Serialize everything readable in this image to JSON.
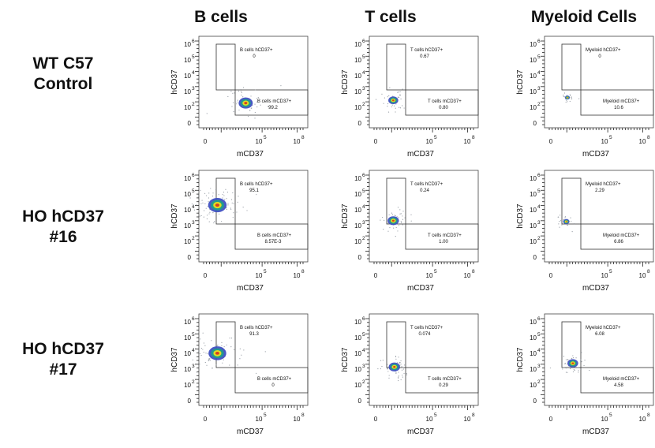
{
  "column_headers": [
    "B cells",
    "T cells",
    "Myeloid Cells"
  ],
  "row_headers": [
    [
      "WT C57",
      "Control"
    ],
    [
      "HO hCD37",
      "#16"
    ],
    [
      "HO hCD37",
      "#17"
    ]
  ],
  "axis": {
    "xlabel": "mCD37",
    "ylabel": "hCD37",
    "x_ticks": [
      {
        "base": "0",
        "exp": ""
      },
      {
        "base": "10",
        "exp": "5"
      },
      {
        "base": "10",
        "exp": "8"
      }
    ],
    "y_ticks": [
      {
        "base": "10",
        "exp": "6"
      },
      {
        "base": "10",
        "exp": "5"
      },
      {
        "base": "10",
        "exp": "4"
      },
      {
        "base": "10",
        "exp": "3"
      },
      {
        "base": "10",
        "exp": "2"
      },
      {
        "base": "0",
        "exp": ""
      }
    ]
  },
  "colors": {
    "density_low": "#3b4cc0",
    "density_mid": "#1fa187",
    "density_high": "#f2e21b",
    "density_peak": "#d7301f",
    "gate": "#333333",
    "scatter": "#9aa0a8"
  },
  "chart_data": [
    {
      "type": "scatter",
      "row": 0,
      "col": 0,
      "population": "B cells",
      "gates": [
        {
          "label": "B cells hCD37+",
          "value": "0"
        },
        {
          "label": "B cells mCD37+",
          "value": "99.2"
        }
      ],
      "cluster": {
        "x": 0.43,
        "y": 0.27,
        "size": 1.0
      }
    },
    {
      "type": "scatter",
      "row": 0,
      "col": 1,
      "population": "T cells",
      "gates": [
        {
          "label": "T cells hCD37+",
          "value": "0.67"
        },
        {
          "label": "T cells mCD37+",
          "value": "0.80"
        }
      ],
      "cluster": {
        "x": 0.22,
        "y": 0.3,
        "size": 0.7
      }
    },
    {
      "type": "scatter",
      "row": 0,
      "col": 2,
      "population": "Myeloid Cells",
      "gates": [
        {
          "label": "Myeloid hCD37+",
          "value": "0"
        },
        {
          "label": "Myeloid mCD37+",
          "value": "10.6"
        }
      ],
      "cluster": {
        "x": 0.21,
        "y": 0.33,
        "size": 0.35
      }
    },
    {
      "type": "scatter",
      "row": 1,
      "col": 0,
      "population": "B cells",
      "gates": [
        {
          "label": "B cells hCD37+",
          "value": "95.1"
        },
        {
          "label": "B cells mCD37+",
          "value": "8.57E-3"
        }
      ],
      "cluster": {
        "x": 0.17,
        "y": 0.62,
        "size": 1.3
      }
    },
    {
      "type": "scatter",
      "row": 1,
      "col": 1,
      "population": "T cells",
      "gates": [
        {
          "label": "T cells hCD37+",
          "value": "0.24"
        },
        {
          "label": "T cells mCD37+",
          "value": "1.00"
        }
      ],
      "cluster": {
        "x": 0.22,
        "y": 0.45,
        "size": 0.8
      }
    },
    {
      "type": "scatter",
      "row": 1,
      "col": 2,
      "population": "Myeloid Cells",
      "gates": [
        {
          "label": "Myeloid hCD37+",
          "value": "2.29"
        },
        {
          "label": "Myeloid mCD37+",
          "value": "6.86"
        }
      ],
      "cluster": {
        "x": 0.2,
        "y": 0.44,
        "size": 0.45
      }
    },
    {
      "type": "scatter",
      "row": 2,
      "col": 0,
      "population": "B cells",
      "gates": [
        {
          "label": "B cells hCD37+",
          "value": "91.3"
        },
        {
          "label": "B cells mCD37+",
          "value": "0"
        }
      ],
      "cluster": {
        "x": 0.17,
        "y": 0.57,
        "size": 1.25
      }
    },
    {
      "type": "scatter",
      "row": 2,
      "col": 1,
      "population": "T cells",
      "gates": [
        {
          "label": "T cells hCD37+",
          "value": "0.074"
        },
        {
          "label": "T cells mCD37+",
          "value": "0.29"
        }
      ],
      "cluster": {
        "x": 0.23,
        "y": 0.42,
        "size": 0.8
      }
    },
    {
      "type": "scatter",
      "row": 2,
      "col": 2,
      "population": "Myeloid Cells",
      "gates": [
        {
          "label": "Myeloid hCD37+",
          "value": "6.08"
        },
        {
          "label": "Myeloid mCD37+",
          "value": "4.58"
        }
      ],
      "cluster": {
        "x": 0.26,
        "y": 0.46,
        "size": 0.75
      }
    }
  ]
}
